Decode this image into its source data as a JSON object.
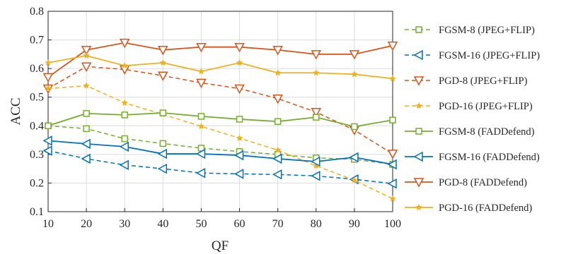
{
  "chart_data": {
    "type": "line",
    "xlabel": "QF",
    "ylabel": "ACC",
    "xlim": [
      10,
      100
    ],
    "ylim": [
      0.1,
      0.8
    ],
    "xticks": [
      10,
      20,
      30,
      40,
      50,
      60,
      70,
      80,
      90,
      100
    ],
    "yticks": [
      0.1,
      0.2,
      0.3,
      0.4,
      0.5,
      0.6,
      0.7,
      0.8
    ],
    "grid": true,
    "legend_position": "right, outside plot",
    "x": [
      10,
      20,
      30,
      40,
      50,
      60,
      70,
      80,
      90,
      100
    ],
    "series": [
      {
        "name": "FGSM-8 (JPEG+FLIP)",
        "color": "#77ac30",
        "dash": "dashed",
        "marker": "square",
        "values": [
          0.4,
          0.39,
          0.355,
          0.338,
          0.322,
          0.31,
          0.3,
          0.288,
          0.283,
          0.265
        ]
      },
      {
        "name": "FGSM-16 (JPEG+FLIP)",
        "color": "#0072bd",
        "dash": "dashed",
        "marker": "triangle-left",
        "values": [
          0.313,
          0.285,
          0.263,
          0.25,
          0.235,
          0.232,
          0.23,
          0.225,
          0.213,
          0.198
        ]
      },
      {
        "name": "PGD-8 (JPEG+FLIP)",
        "color": "#d95319",
        "dash": "dashed",
        "marker": "triangle-down",
        "values": [
          0.53,
          0.607,
          0.597,
          0.575,
          0.55,
          0.53,
          0.495,
          0.448,
          0.385,
          0.302
        ]
      },
      {
        "name": "PGD-16 (JPEG+FLIP)",
        "color": "#edb120",
        "dash": "dashed",
        "marker": "star",
        "values": [
          0.53,
          0.54,
          0.48,
          0.44,
          0.398,
          0.357,
          0.315,
          0.26,
          0.21,
          0.145
        ]
      },
      {
        "name": "FGSM-8 (FADDefend)",
        "color": "#77ac30",
        "dash": "solid",
        "marker": "square",
        "values": [
          0.4,
          0.443,
          0.438,
          0.445,
          0.433,
          0.423,
          0.415,
          0.43,
          0.397,
          0.42
        ]
      },
      {
        "name": "FGSM-16 (FADDefend)",
        "color": "#0072bd",
        "dash": "solid",
        "marker": "triangle-left",
        "values": [
          0.348,
          0.337,
          0.327,
          0.302,
          0.302,
          0.297,
          0.285,
          0.275,
          0.29,
          0.265
        ]
      },
      {
        "name": "PGD-8 (FADDefend)",
        "color": "#d95319",
        "dash": "solid",
        "marker": "triangle-down",
        "values": [
          0.57,
          0.665,
          0.69,
          0.665,
          0.675,
          0.675,
          0.665,
          0.65,
          0.65,
          0.68
        ]
      },
      {
        "name": "PGD-16 (FADDefend)",
        "color": "#edb120",
        "dash": "solid",
        "marker": "star",
        "values": [
          0.62,
          0.645,
          0.61,
          0.62,
          0.59,
          0.62,
          0.585,
          0.585,
          0.58,
          0.565
        ]
      }
    ]
  }
}
